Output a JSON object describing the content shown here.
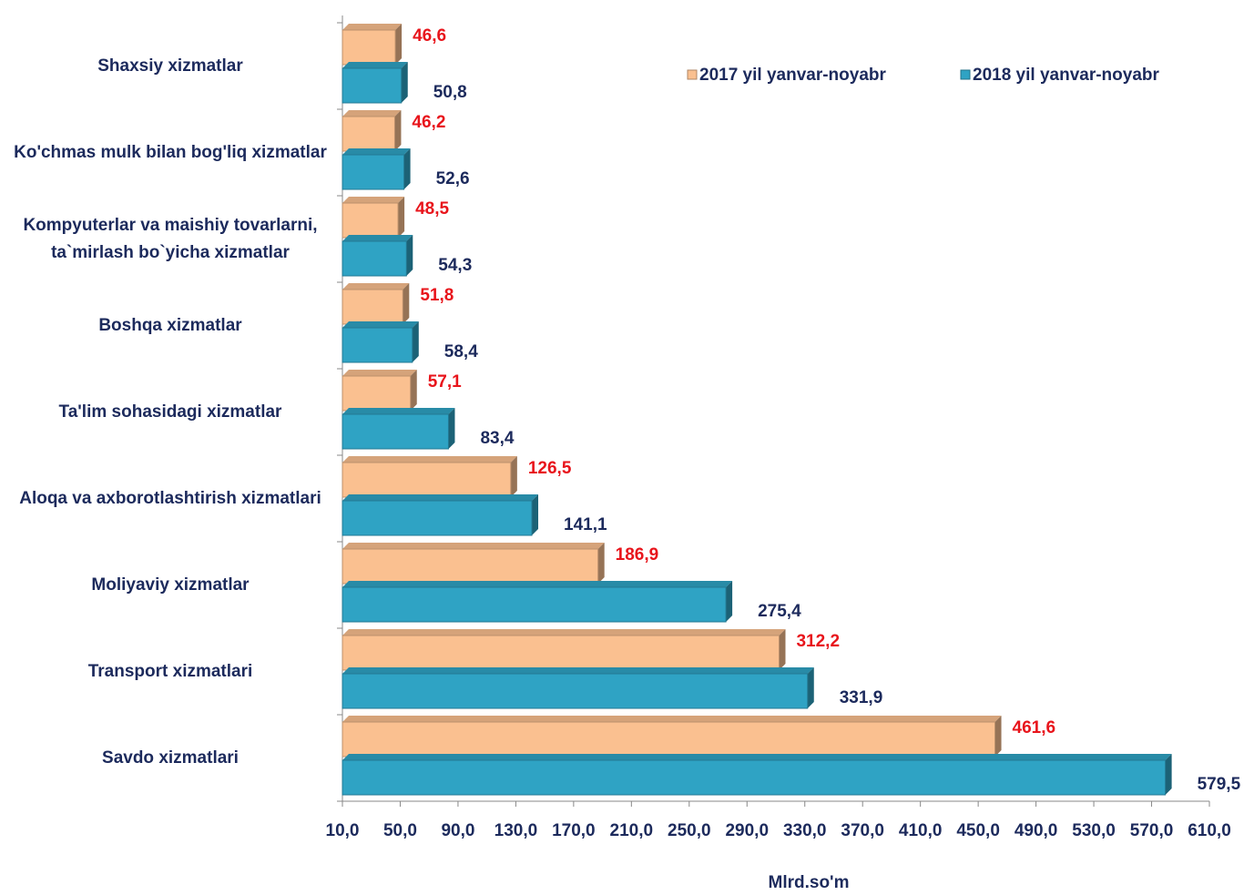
{
  "chart_data": {
    "type": "bar",
    "orientation": "horizontal",
    "x_label": "Mlrd.so'm",
    "categories": [
      "Shaxsiy xizmatlar",
      "Ko'chmas mulk bilan bog'liq xizmatlar",
      "Kompyuterlar va maishiy tovarlarni,\nta`mirlash bo`yicha xizmatlar",
      "Boshqa xizmatlar",
      "Ta'lim sohasidagi xizmatlar",
      "Aloqa va axborotlashtirish xizmatlari",
      "Moliyaviy xizmatlar",
      "Transport xizmatlari",
      "Savdo xizmatlari"
    ],
    "series": [
      {
        "name": "2017 yil yanvar-noyabr",
        "color": "#fac090",
        "label_color": "#e8141b",
        "values": [
          46.6,
          46.2,
          48.5,
          51.8,
          57.1,
          126.5,
          186.9,
          312.2,
          461.6
        ],
        "value_labels": [
          "46,6",
          "46,2",
          "48,5",
          "51,8",
          "57,1",
          "126,5",
          "186,9",
          "312,2",
          "461,6"
        ]
      },
      {
        "name": "2018 yil yanvar-noyabr",
        "color": "#2fa3c4",
        "label_color": "#1c2a5c",
        "values": [
          50.8,
          52.6,
          54.3,
          58.4,
          83.4,
          141.1,
          275.4,
          331.9,
          579.5
        ],
        "value_labels": [
          "50,8",
          "52,6",
          "54,3",
          "58,4",
          "83,4",
          "141,1",
          "275,4",
          "331,9",
          "579,5"
        ]
      }
    ],
    "xlim": [
      10,
      610
    ],
    "xticks": [
      {
        "value": 10,
        "label": "10,0"
      },
      {
        "value": 50,
        "label": "50,0"
      },
      {
        "value": 90,
        "label": "90,0"
      },
      {
        "value": 130,
        "label": "130,0"
      },
      {
        "value": 170,
        "label": "170,0"
      },
      {
        "value": 210,
        "label": "210,0"
      },
      {
        "value": 250,
        "label": "250,0"
      },
      {
        "value": 290,
        "label": "290,0"
      },
      {
        "value": 330,
        "label": "330,0"
      },
      {
        "value": 370,
        "label": "370,0"
      },
      {
        "value": 410,
        "label": "410,0"
      },
      {
        "value": 450,
        "label": "450,0"
      },
      {
        "value": 490,
        "label": "490,0"
      },
      {
        "value": 530,
        "label": "530,0"
      },
      {
        "value": 570,
        "label": "570,0"
      },
      {
        "value": 610,
        "label": "610,0"
      }
    ],
    "legend": "top-right",
    "grid": false
  }
}
